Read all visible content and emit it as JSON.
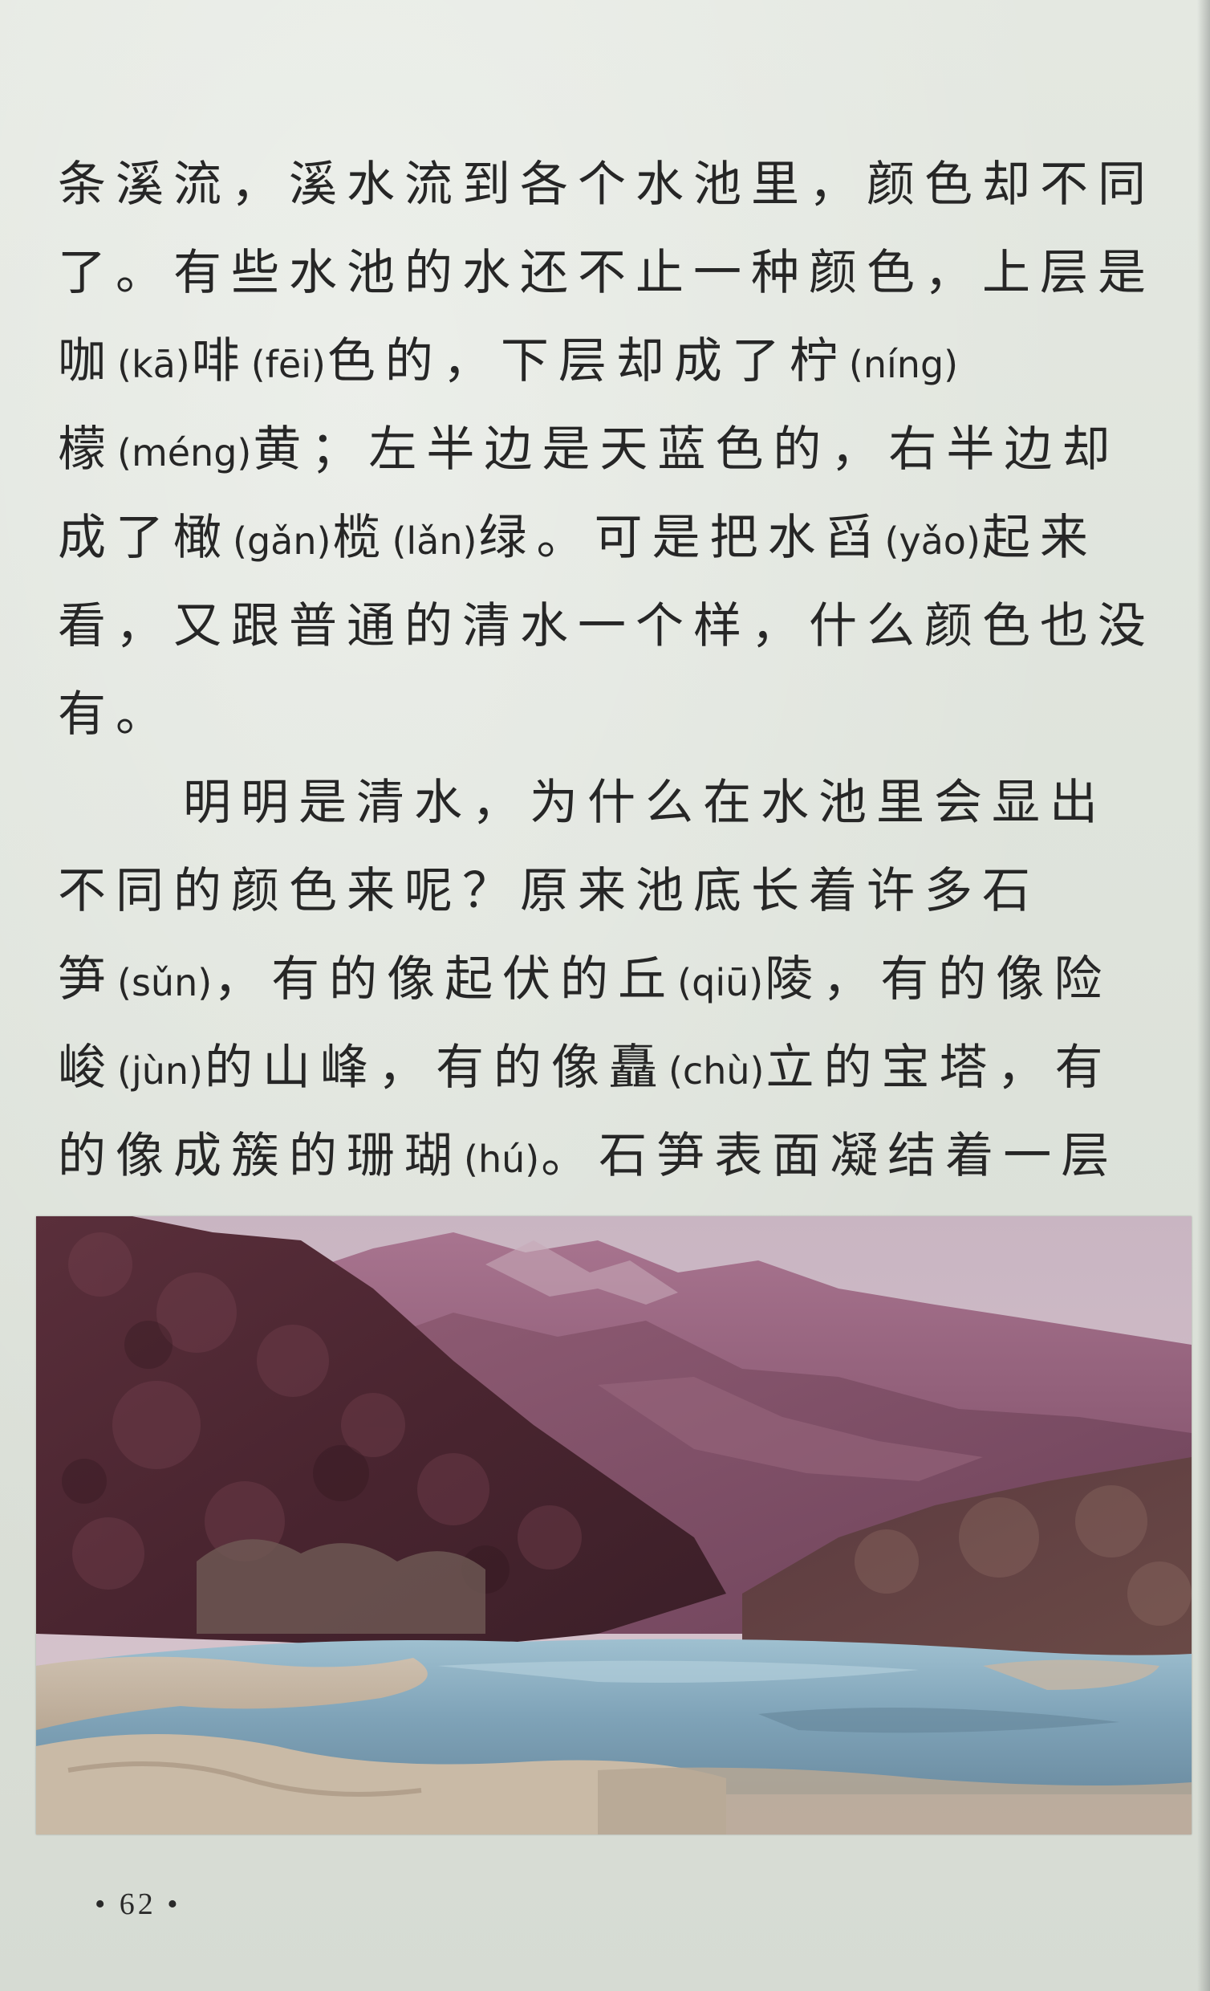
{
  "text": {
    "line1": "条溪流，溪水流到各个水池里，颜色却不同",
    "line2": "了。有些水池的水还不止一种颜色，上层是",
    "line3": {
      "a": "咖",
      "p1": "(kā)",
      "b": "啡",
      "p2": "(fēi)",
      "c": "色的，下层却成了柠",
      "p3": "(níng)"
    },
    "line4": {
      "a": "檬",
      "p1": "(méng)",
      "b": "黄；左半边是天蓝色的，右半边却"
    },
    "line5": {
      "a": "成了橄",
      "p1": "(gǎn)",
      "b": "榄",
      "p2": "(lǎn)",
      "c": "绿。可是把水舀",
      "p3": "(yǎo)",
      "d": "起来"
    },
    "line6": "看，又跟普通的清水一个样，什么颜色也没",
    "line7": "有。",
    "line8": "明明是清水，为什么在水池里会显出",
    "line9": "不同的颜色来呢？原来池底长着许多石",
    "line10": {
      "a": "笋",
      "p1": "(sǔn)",
      "b": "，有的像起伏的丘",
      "p2": "(qiū)",
      "c": "陵，有的像险"
    },
    "line11": {
      "a": "峻",
      "p1": "(jùn)",
      "b": "的山峰，有的像矗",
      "p2": "(chù)",
      "c": "立的宝塔，有"
    },
    "line12": {
      "a": "的像成簇的珊瑚",
      "p1": "(hú)",
      "b": "。石笋表面凝结着一层"
    }
  },
  "footer": {
    "page_number": "• 62 •"
  },
  "colors": {
    "paper": "#e0e4dd",
    "ink": "#262626",
    "mountain": "#7a4a63",
    "forest": "#4a2a33",
    "water": "#8fb0c4"
  }
}
